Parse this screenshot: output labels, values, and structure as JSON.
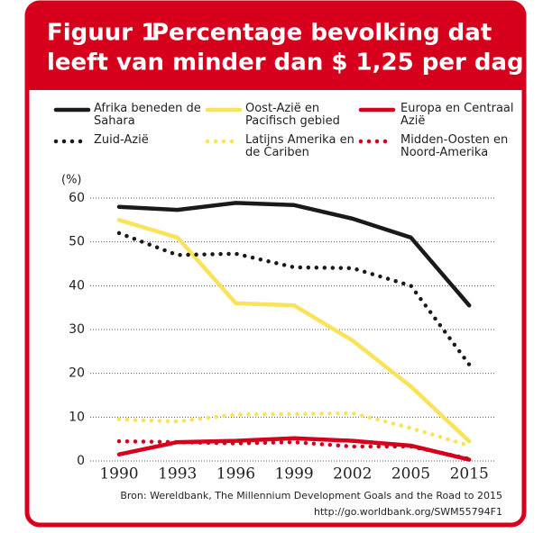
{
  "chart_data": {
    "type": "line",
    "figure_label": "Figuur 1",
    "title": [
      "Percentage bevolking dat",
      "leeft van minder dan $ 1,25 per dag"
    ],
    "y_label": "(%)",
    "categories": [
      "1990",
      "1993",
      "1996",
      "1999",
      "2002",
      "2005",
      "2015"
    ],
    "ylim": [
      0,
      60
    ],
    "yticks": [
      0,
      10,
      20,
      30,
      40,
      50,
      60
    ],
    "grid": true,
    "series": [
      {
        "name": "Afrika beneden de Sahara",
        "color": "#1a1a1a",
        "dash": "solid",
        "values": [
          58,
          57.3,
          58.9,
          58.4,
          55.3,
          51,
          35.5
        ]
      },
      {
        "name": "Oost-Azië en Pacifisch gebied",
        "color": "#f8e35a",
        "dash": "solid",
        "values": [
          55,
          51,
          36,
          35.5,
          27.5,
          17,
          4.5
        ]
      },
      {
        "name": "Europa en Centraal Azië",
        "color": "#d6001c",
        "dash": "solid",
        "values": [
          1.5,
          4.3,
          4.6,
          5.2,
          4.6,
          3.5,
          0.3
        ]
      },
      {
        "name": "Zuid-Azië",
        "color": "#1a1a1a",
        "dash": "dotted",
        "values": [
          52,
          47,
          47.3,
          44.2,
          44,
          40,
          22
        ]
      },
      {
        "name": "Latijns Amerika en de Cariben",
        "color": "#f8e35a",
        "dash": "dotted",
        "values": [
          9.5,
          9,
          10.6,
          10.7,
          10.9,
          7.5,
          3.5
        ]
      },
      {
        "name": "Midden-Oosten en Noord-Amerika",
        "color": "#d6001c",
        "dash": "dotted",
        "values": [
          4.5,
          4.3,
          4,
          4.3,
          3.3,
          3.3,
          0.5
        ]
      }
    ],
    "source": [
      "Bron: Wereldbank, The Millennium Development Goals and the Road to 2015",
      "http://go.worldbank.org/SWM55794F1"
    ]
  }
}
